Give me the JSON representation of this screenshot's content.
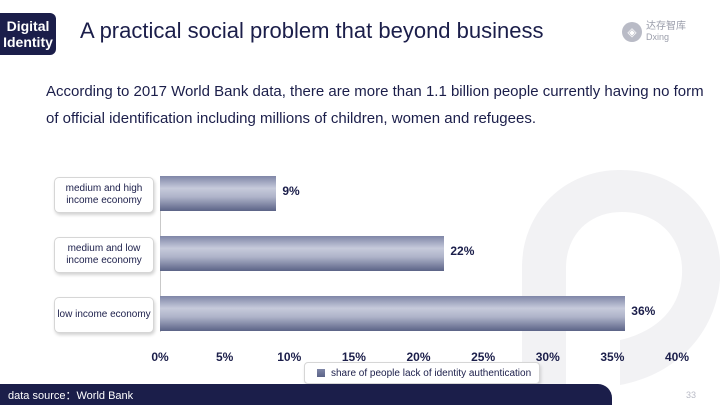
{
  "tag": {
    "label": "Digital\nIdentity"
  },
  "title": "A practical social problem that beyond business",
  "logo": {
    "cn": "达存智库",
    "en": "Dxing"
  },
  "intro": "According to 2017 World Bank data, there are more than 1.1 billion people currently having no form of official identification including millions of children, women and refugees.",
  "chart_data": {
    "type": "bar",
    "orientation": "horizontal",
    "categories": [
      "medium and high income economy",
      "medium and low income economy",
      "low income economy"
    ],
    "series": [
      {
        "name": "share of people lack of identity authentication",
        "values": [
          9,
          22,
          36
        ]
      }
    ],
    "value_labels": [
      "9%",
      "22%",
      "36%"
    ],
    "xlim": [
      0,
      40
    ],
    "xticks": [
      "0%",
      "5%",
      "10%",
      "15%",
      "20%",
      "25%",
      "30%",
      "35%",
      "40%"
    ],
    "grid": false,
    "legend_position": "bottom",
    "colors": {
      "bar": "#5b6387",
      "bar_highlight": "#c6cadb"
    }
  },
  "footer": {
    "source": "data source：World Bank"
  },
  "page_number": "33",
  "colors": {
    "primary": "#1b1e4a"
  }
}
